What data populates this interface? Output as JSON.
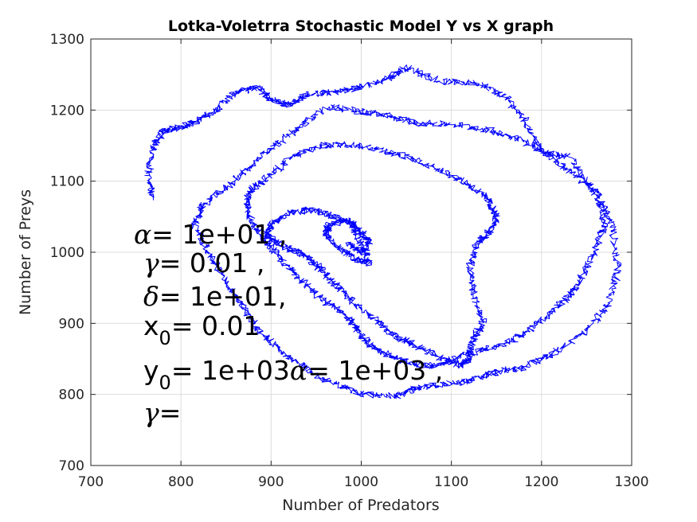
{
  "chart_data": {
    "type": "line",
    "title": "Lotka-Voletrra Stochastic Model Y vs X graph",
    "xlabel": "Number of Predators",
    "ylabel": "Number of Preys",
    "xlim": [
      700,
      1300
    ],
    "ylim": [
      700,
      1300
    ],
    "xticks": [
      "700",
      "800",
      "900",
      "1000",
      "1100",
      "1200",
      "1300"
    ],
    "yticks": [
      "700",
      "800",
      "900",
      "1000",
      "1100",
      "1200",
      "1300"
    ],
    "grid": true,
    "series": [
      {
        "color": "#0000ff",
        "x": [
          768,
          764,
          770,
          780,
          798,
          818,
          838,
          860,
          885,
          900,
          920,
          940,
          970,
          1000,
          1030,
          1050,
          1090,
          1130,
          1160,
          1180,
          1200,
          1230,
          1260,
          1278,
          1285,
          1275,
          1250,
          1210,
          1180,
          1150,
          1120,
          1090,
          1060,
          1040,
          1000,
          970,
          940,
          910,
          890,
          870,
          850,
          830,
          815,
          825,
          850,
          875,
          905,
          935,
          965,
          1000,
          1030,
          1060,
          1100,
          1140,
          1175,
          1205,
          1230,
          1262,
          1270,
          1258,
          1240,
          1225,
          1200,
          1175,
          1145,
          1110,
          1085,
          1060,
          1030,
          1010,
          995,
          985,
          960,
          935,
          915,
          895,
          880,
          872,
          880,
          900,
          925,
          955,
          988,
          1020,
          1055,
          1090,
          1120,
          1140,
          1150,
          1140,
          1130,
          1120,
          1125,
          1135,
          1125,
          1120,
          1110,
          1090,
          1060,
          1040,
          1020,
          995,
          975,
          955,
          940,
          920,
          905,
          895,
          900,
          920,
          945,
          970,
          990,
          1000,
          1010,
          995,
          975,
          960,
          965,
          985,
          1000,
          1010,
          1000,
          985
        ],
        "y": [
          1075,
          1110,
          1150,
          1170,
          1175,
          1185,
          1200,
          1225,
          1232,
          1215,
          1208,
          1222,
          1225,
          1232,
          1245,
          1260,
          1240,
          1238,
          1218,
          1190,
          1140,
          1135,
          1082,
          1040,
          975,
          930,
          888,
          855,
          838,
          832,
          818,
          815,
          808,
          798,
          800,
          815,
          835,
          862,
          885,
          920,
          960,
          1000,
          1040,
          1068,
          1090,
          1120,
          1150,
          1180,
          1205,
          1198,
          1192,
          1182,
          1180,
          1172,
          1160,
          1140,
          1115,
          1085,
          1040,
          995,
          955,
          930,
          905,
          880,
          865,
          855,
          840,
          842,
          855,
          870,
          892,
          910,
          930,
          958,
          985,
          1015,
          1040,
          1070,
          1090,
          1110,
          1135,
          1150,
          1152,
          1145,
          1132,
          1115,
          1095,
          1075,
          1050,
          1025,
          1015,
          980,
          940,
          900,
          880,
          850,
          840,
          850,
          870,
          880,
          900,
          925,
          950,
          975,
          995,
          1005,
          1015,
          1025,
          1040,
          1055,
          1060,
          1050,
          1040,
          1010,
          985,
          990,
          1005,
          1025,
          1040,
          1045,
          1030,
          1012,
          1000,
          1012
        ]
      }
    ]
  },
  "annotation": {
    "lines": [
      {
        "sym": "α",
        "rest": "= 1e+01 ,"
      },
      {
        "sym": "γ",
        "rest": "= 0.01 ,"
      },
      {
        "sym": "δ",
        "rest": "= 1e+01,"
      },
      {
        "pre": "x",
        "sub": "0",
        "rest": "= 0.01"
      },
      {
        "pre": "y",
        "sub": "0",
        "rest": "= 1e+03",
        "sym2": "α",
        "rest2": "= 1e+03 ,"
      },
      {
        "sym": "γ",
        "rest": "="
      }
    ]
  }
}
